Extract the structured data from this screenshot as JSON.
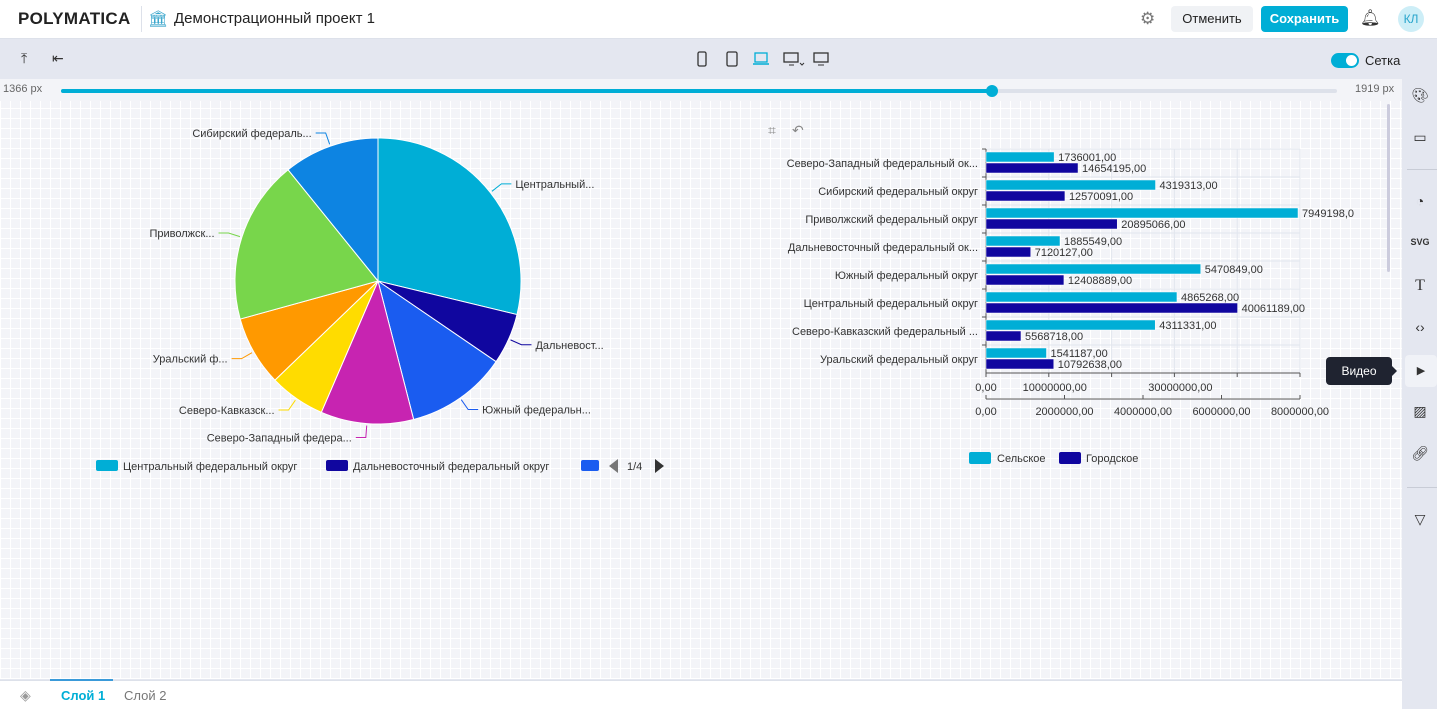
{
  "header": {
    "logo": "POLYMATICA",
    "project_icon": "bank-icon",
    "project_title": "Демонстрационный проект 1",
    "cancel": "Отменить",
    "save": "Сохранить",
    "avatar": "КЛ"
  },
  "toolbar": {
    "grid_label": "Сетка",
    "grid_on": true,
    "devices": [
      "phone",
      "tablet",
      "laptop",
      "desktop",
      "monitor"
    ],
    "active_device": "laptop"
  },
  "slider": {
    "min_label": "1366 px",
    "max_label": "1919 px",
    "value_fraction": 0.73
  },
  "sidebar": {
    "items": [
      "palette",
      "layers",
      "chart",
      "svg",
      "text",
      "code",
      "video",
      "image",
      "link",
      "filter"
    ],
    "tooltip": "Видео"
  },
  "layers": {
    "items": [
      "Слой 1",
      "Слой 2"
    ],
    "active": "Слой 1"
  },
  "colors": {
    "accent": "#00aed6"
  },
  "chart_data": [
    {
      "type": "pie",
      "slices": [
        {
          "label": "Центральный...",
          "name": "Центральный федеральный округ",
          "value": 44926457,
          "color": "#00aed6"
        },
        {
          "label": "Дальневост...",
          "name": "Дальневосточный федеральный округ",
          "value": 9005676,
          "color": "#10069f"
        },
        {
          "label": "Южный федеральн...",
          "name": "Южный федеральный округ",
          "value": 17879738,
          "color": "#1a5cf0"
        },
        {
          "label": "Северо-Западный федера...",
          "name": "Северо-Западный федеральный округ",
          "value": 16390196,
          "color": "#c724b1"
        },
        {
          "label": "Северо-Кавказск...",
          "name": "Северо-Кавказский федеральный округ",
          "value": 9880049,
          "color": "#ffdc00"
        },
        {
          "label": "Уральский ф...",
          "name": "Уральский федеральный округ",
          "value": 12333825,
          "color": "#ff9900"
        },
        {
          "label": "Приволжск...",
          "name": "Приволжский федеральный округ",
          "value": 28844264,
          "color": "#78d64b"
        },
        {
          "label": "Сибирский федераль...",
          "name": "Сибирский федеральный округ",
          "value": 16889404,
          "color": "#0d84e2"
        }
      ],
      "legend": {
        "items": [
          "Центральный федеральный округ",
          "Дальневосточный федеральный округ"
        ],
        "page": "1/4",
        "placement": "bottom"
      }
    },
    {
      "type": "bar",
      "orientation": "horizontal",
      "categories": [
        "Северо-Западный федеральный ок...",
        "Сибирский федеральный округ",
        "Приволжский федеральный округ",
        "Дальневосточный федеральный ок...",
        "Южный федеральный округ",
        "Центральный федеральный округ",
        "Северо-Кавказский федеральный ...",
        "Уральский федеральный округ"
      ],
      "series": [
        {
          "name": "Сельское",
          "color": "#00aed6",
          "axis": "bottom",
          "values": [
            1736001,
            4319313,
            7949198,
            1885549,
            5470849,
            4865268,
            4311331,
            1541187
          ],
          "labels": [
            "1736001,00",
            "4319313,00",
            "7949198,0",
            "1885549,00",
            "5470849,00",
            "4865268,00",
            "4311331,00",
            "1541187,00"
          ]
        },
        {
          "name": "Городское",
          "color": "#10069f",
          "axis": "top",
          "values": [
            14654195,
            12570091,
            20895066,
            7120127,
            12408889,
            40061189,
            5568718,
            10792638
          ],
          "labels": [
            "14654195,00",
            "12570091,00",
            "20895066,00",
            "7120127,00",
            "12408889,00",
            "40061189,00",
            "5568718,00",
            "10792638,00"
          ]
        }
      ],
      "axis_top": {
        "range": [
          0,
          50000000
        ],
        "tick_labels": [
          "0,00",
          "10000000,00",
          "30000000,00"
        ]
      },
      "axis_bottom": {
        "range": [
          0,
          8000000
        ],
        "tick_labels": [
          "0,00",
          "2000000,00",
          "4000000,00",
          "6000000,00",
          "8000000,00"
        ]
      },
      "grid": true,
      "legend": {
        "placement": "bottom"
      }
    }
  ]
}
